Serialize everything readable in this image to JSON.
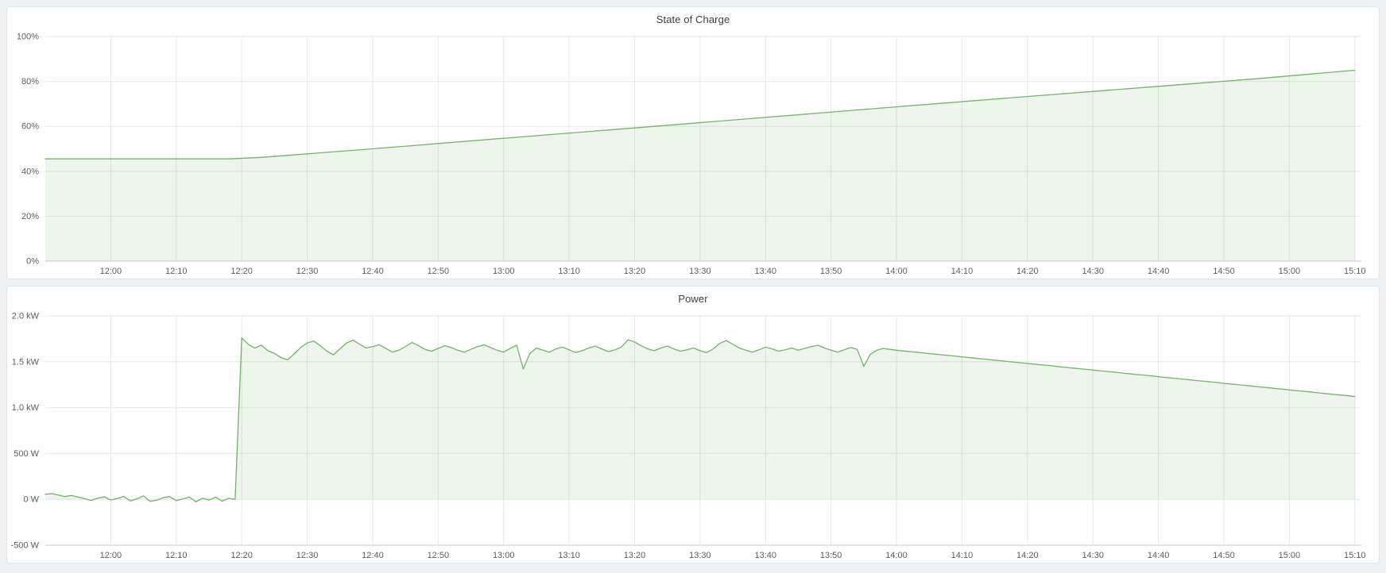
{
  "colors": {
    "line_green": "#74b36a",
    "fill_green": "rgba(116,179,106,0.13)",
    "gridline": "#e6e8ea",
    "axis_line": "#c9cbce",
    "tick_text": "#5a5d63",
    "title_text": "#3c3f44",
    "panel_background": "#ffffff",
    "page_background": "#eef0f1"
  },
  "chart_data": [
    {
      "type": "area",
      "title": "State of Charge",
      "xlabel": "",
      "ylabel": "",
      "y_unit": "%",
      "y_domain": [
        0,
        100
      ],
      "y_ticks": [
        {
          "v": 0,
          "label": "0%"
        },
        {
          "v": 20,
          "label": "20%"
        },
        {
          "v": 40,
          "label": "40%"
        },
        {
          "v": 60,
          "label": "60%"
        },
        {
          "v": 80,
          "label": "80%"
        },
        {
          "v": 100,
          "label": "100%"
        }
      ],
      "x_domain_minutes": [
        0,
        201
      ],
      "x_ticks": {
        "minutes": [
          10,
          20,
          30,
          40,
          50,
          60,
          70,
          80,
          90,
          100,
          110,
          120,
          130,
          140,
          150,
          160,
          170,
          180,
          190,
          200
        ],
        "labels": [
          "12:00",
          "12:10",
          "12:20",
          "12:30",
          "12:40",
          "12:50",
          "13:00",
          "13:10",
          "13:20",
          "13:30",
          "13:40",
          "13:50",
          "14:00",
          "14:10",
          "14:20",
          "14:30",
          "14:40",
          "14:50",
          "15:00",
          "15:10"
        ]
      },
      "baseline_value": 0,
      "grid": true,
      "legend": "none",
      "points": [
        [
          0,
          45.5
        ],
        [
          14,
          45.5
        ],
        [
          28,
          45.5
        ],
        [
          33,
          46.2
        ],
        [
          50,
          50.0
        ],
        [
          70,
          54.7
        ],
        [
          90,
          59.3
        ],
        [
          110,
          64.0
        ],
        [
          130,
          68.7
        ],
        [
          150,
          73.3
        ],
        [
          170,
          77.8
        ],
        [
          185,
          81.2
        ],
        [
          200,
          85.0
        ]
      ]
    },
    {
      "type": "area",
      "title": "Power",
      "xlabel": "",
      "ylabel": "",
      "y_unit": "W",
      "y_domain": [
        -500,
        2000
      ],
      "y_ticks": [
        {
          "v": -500,
          "label": "-500 W"
        },
        {
          "v": 0,
          "label": "0 W"
        },
        {
          "v": 500,
          "label": "500 W"
        },
        {
          "v": 1000,
          "label": "1.0 kW"
        },
        {
          "v": 1500,
          "label": "1.5 kW"
        },
        {
          "v": 2000,
          "label": "2.0 kW"
        }
      ],
      "x_domain_minutes": [
        0,
        201
      ],
      "x_ticks": {
        "minutes": [
          10,
          20,
          30,
          40,
          50,
          60,
          70,
          80,
          90,
          100,
          110,
          120,
          130,
          140,
          150,
          160,
          170,
          180,
          190,
          200
        ],
        "labels": [
          "12:00",
          "12:10",
          "12:20",
          "12:30",
          "12:40",
          "12:50",
          "13:00",
          "13:10",
          "13:20",
          "13:30",
          "13:40",
          "13:50",
          "14:00",
          "14:10",
          "14:20",
          "14:30",
          "14:40",
          "14:50",
          "15:00",
          "15:10"
        ]
      },
      "baseline_value": 0,
      "grid": true,
      "legend": "none",
      "series_start_minute": 0,
      "series_step_minutes": 1,
      "values": [
        55,
        62,
        48,
        30,
        42,
        25,
        8,
        -12,
        14,
        28,
        -8,
        10,
        32,
        -18,
        6,
        38,
        -22,
        -10,
        18,
        30,
        -15,
        4,
        26,
        -28,
        12,
        -8,
        24,
        -20,
        10,
        2,
        1760,
        1690,
        1650,
        1680,
        1620,
        1590,
        1545,
        1520,
        1585,
        1655,
        1705,
        1725,
        1675,
        1615,
        1575,
        1640,
        1705,
        1735,
        1690,
        1650,
        1665,
        1685,
        1645,
        1605,
        1625,
        1665,
        1710,
        1675,
        1635,
        1615,
        1645,
        1675,
        1655,
        1625,
        1605,
        1635,
        1665,
        1685,
        1655,
        1625,
        1605,
        1645,
        1680,
        1420,
        1590,
        1650,
        1625,
        1605,
        1640,
        1660,
        1630,
        1600,
        1620,
        1650,
        1670,
        1640,
        1610,
        1630,
        1660,
        1740,
        1715,
        1675,
        1640,
        1620,
        1650,
        1670,
        1640,
        1615,
        1630,
        1650,
        1620,
        1600,
        1640,
        1700,
        1730,
        1690,
        1650,
        1625,
        1605,
        1630,
        1660,
        1640,
        1615,
        1630,
        1650,
        1625,
        1645,
        1665,
        1680,
        1650,
        1625,
        1605,
        1630,
        1655,
        1635,
        1450,
        1580,
        1625,
        1645,
        1635,
        1625,
        1618,
        1611,
        1604,
        1597,
        1589,
        1582,
        1575,
        1568,
        1561,
        1553,
        1546,
        1539,
        1532,
        1525,
        1517,
        1510,
        1503,
        1496,
        1489,
        1481,
        1474,
        1467,
        1460,
        1453,
        1445,
        1438,
        1431,
        1424,
        1417,
        1409,
        1402,
        1395,
        1388,
        1381,
        1373,
        1366,
        1359,
        1352,
        1345,
        1337,
        1330,
        1323,
        1316,
        1309,
        1301,
        1294,
        1287,
        1280,
        1273,
        1265,
        1258,
        1251,
        1244,
        1237,
        1229,
        1222,
        1215,
        1208,
        1201,
        1193,
        1186,
        1179,
        1172,
        1165,
        1157,
        1150,
        1143,
        1136,
        1129,
        1120
      ]
    }
  ]
}
